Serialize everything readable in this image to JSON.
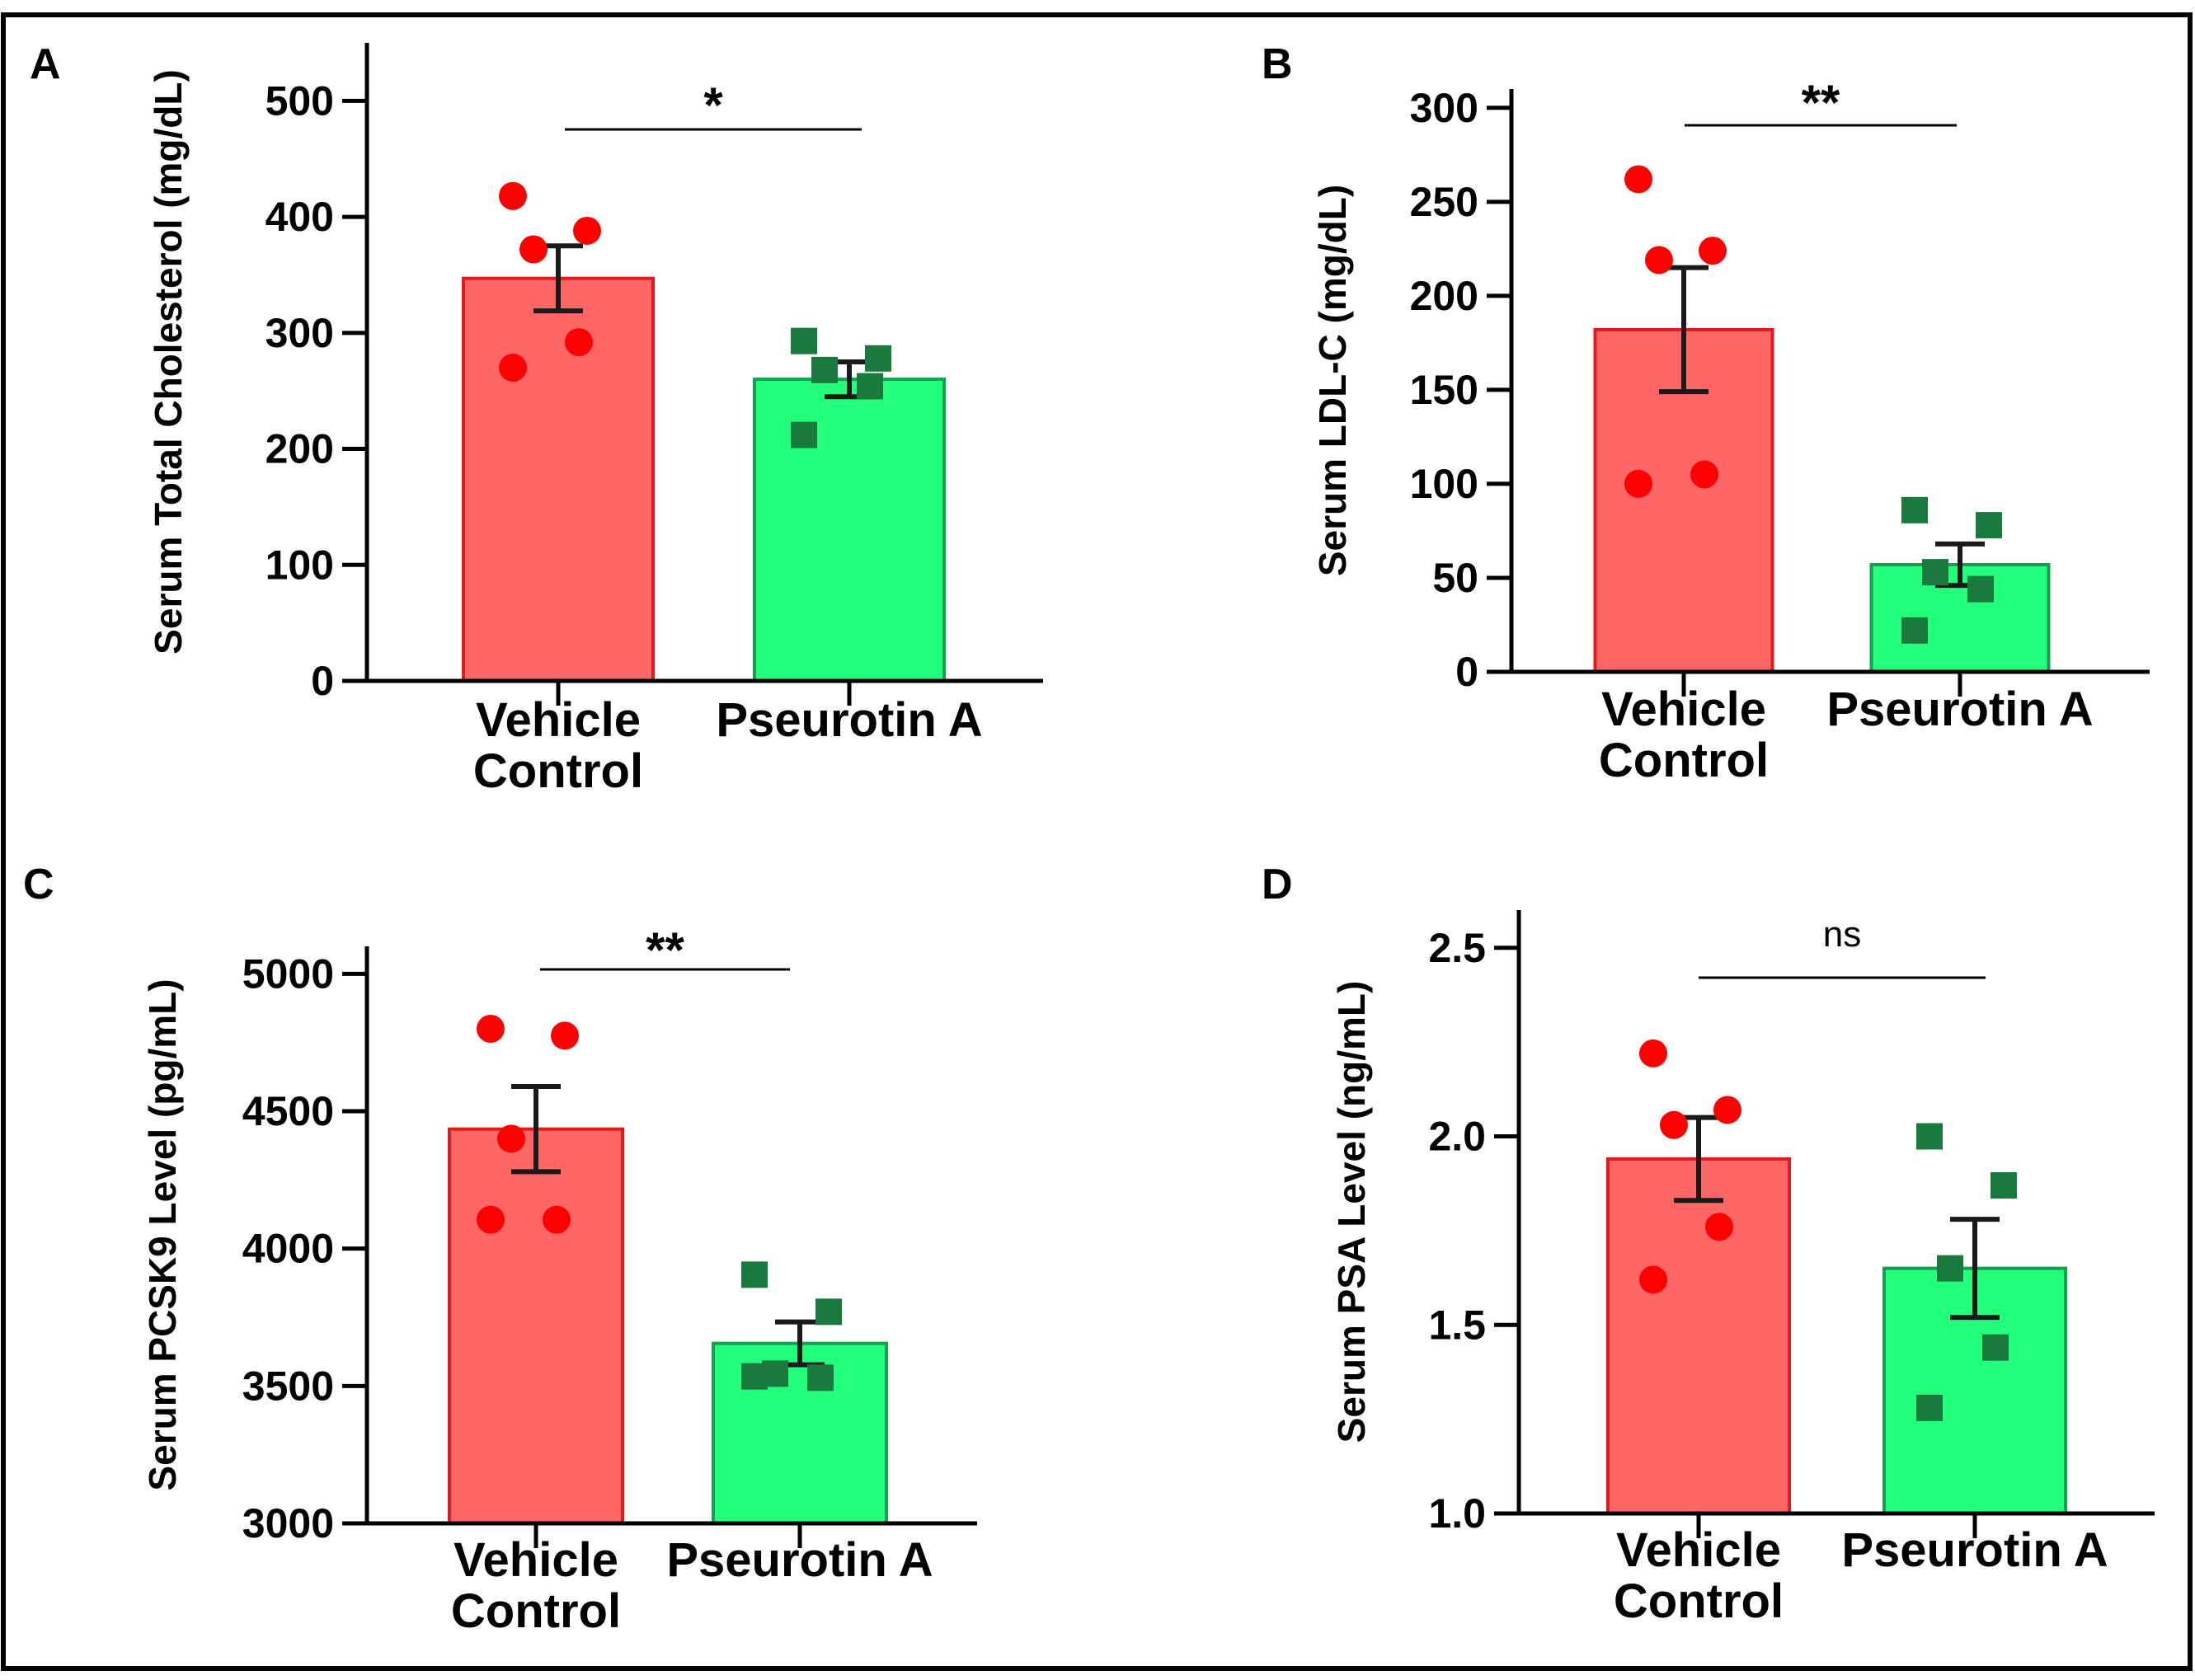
{
  "colors": {
    "vehicle_fill": "#FF6666",
    "vehicle_edge": "#E31A1C",
    "vehicle_point": "#FF0000",
    "pseurotin_fill": "#22FF7A",
    "pseurotin_edge": "#14A050",
    "pseurotin_point": "#1A7A3E",
    "axis": "#000000",
    "errorbar": "#1A1A1A",
    "frame": "#000000"
  },
  "chart_data": [
    {
      "panel": "A",
      "type": "bar",
      "ylabel": "Serum Total Cholesterol (mg/dL)",
      "ylim": [
        0,
        550
      ],
      "yticks": [
        0,
        100,
        200,
        300,
        400,
        500
      ],
      "ytick_labels": [
        "0",
        "100",
        "200",
        "300",
        "400",
        "500"
      ],
      "categories": [
        {
          "lines": [
            "Vehicle",
            "Control"
          ],
          "value": 347,
          "sem": 28,
          "points": [
            418,
            388,
            372,
            292,
            270
          ],
          "marker": "circle"
        },
        {
          "lines": [
            "Pseurotin A"
          ],
          "value": 260,
          "sem": 15,
          "points": [
            293,
            278,
            268,
            254,
            212
          ],
          "marker": "square"
        }
      ],
      "significance": "*"
    },
    {
      "panel": "B",
      "type": "bar",
      "ylabel": "Serum LDL-C (mg/dL)",
      "ylim": [
        0,
        310
      ],
      "yticks": [
        0,
        50,
        100,
        150,
        200,
        250,
        300
      ],
      "ytick_labels": [
        "0",
        "50",
        "100",
        "150",
        "200",
        "250",
        "300"
      ],
      "categories": [
        {
          "lines": [
            "Vehicle",
            "Control"
          ],
          "value": 182,
          "sem": 33,
          "points": [
            262,
            224,
            219,
            105,
            100
          ],
          "marker": "circle"
        },
        {
          "lines": [
            "Pseurotin A"
          ],
          "value": 57,
          "sem": 11,
          "points": [
            86,
            78,
            53,
            44,
            22
          ],
          "marker": "square"
        }
      ],
      "significance": "**"
    },
    {
      "panel": "C",
      "type": "bar",
      "ylabel": "Serum PCSK9 Level (pg/mL)",
      "ylim": [
        3000,
        5100
      ],
      "yticks": [
        3000,
        3500,
        4000,
        4500,
        5000
      ],
      "ytick_labels": [
        "3000",
        "3500",
        "4000",
        "4500",
        "5000"
      ],
      "categories": [
        {
          "lines": [
            "Vehicle",
            "Control"
          ],
          "value": 4435,
          "sem": 155,
          "points": [
            4800,
            4775,
            4400,
            4105,
            4105
          ],
          "marker": "circle"
        },
        {
          "lines": [
            "Pseurotin A"
          ],
          "value": 3655,
          "sem": 78,
          "points": [
            3905,
            3770,
            3545,
            3530,
            3535
          ],
          "marker": "square"
        }
      ],
      "significance": "**"
    },
    {
      "panel": "D",
      "type": "bar",
      "ylabel": "Serum PSA Level (ng/mL)",
      "ylim": [
        1.0,
        2.6
      ],
      "yticks": [
        1.0,
        1.5,
        2.0,
        2.5
      ],
      "ytick_labels": [
        "1.0",
        "1.5",
        "2.0",
        "2.5"
      ],
      "categories": [
        {
          "lines": [
            "Vehicle",
            "Control"
          ],
          "value": 1.94,
          "sem": 0.11,
          "points": [
            2.22,
            2.07,
            2.03,
            1.76,
            1.62
          ],
          "marker": "circle"
        },
        {
          "lines": [
            "Pseurotin A"
          ],
          "value": 1.65,
          "sem": 0.13,
          "points": [
            2.0,
            1.87,
            1.65,
            1.44,
            1.28
          ],
          "marker": "square"
        }
      ],
      "significance": "ns"
    }
  ]
}
